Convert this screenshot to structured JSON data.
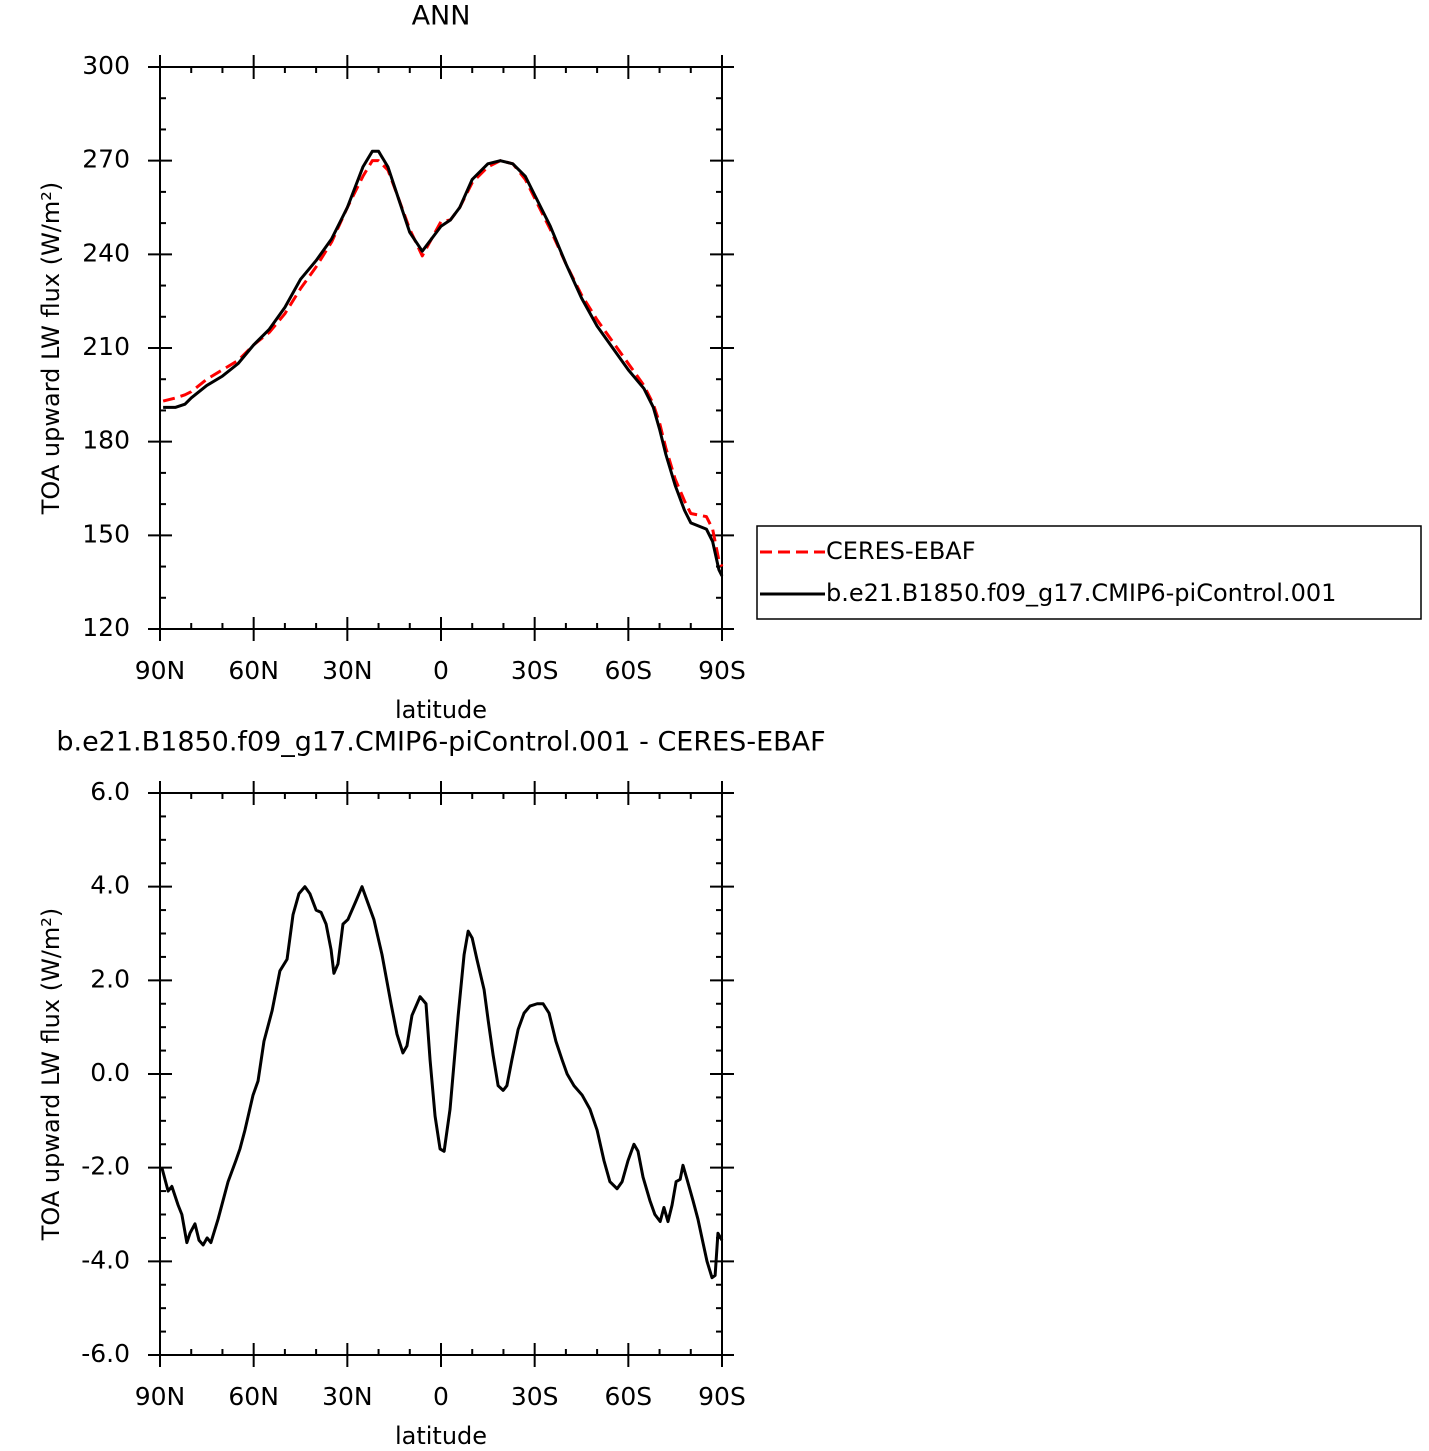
{
  "chart_data": [
    {
      "type": "line",
      "title": "ANN",
      "xlabel": "latitude",
      "ylabel": "TOA upward LW flux (W/m²)",
      "xlim": [
        90,
        -90
      ],
      "xticks": [
        {
          "value": 90,
          "label": "90N"
        },
        {
          "value": 60,
          "label": "60N"
        },
        {
          "value": 30,
          "label": "30N"
        },
        0,
        {
          "value": -30,
          "label": "30S"
        },
        {
          "value": -60,
          "label": "60S"
        },
        {
          "value": -90,
          "label": "90S"
        }
      ],
      "ylim": [
        120,
        300
      ],
      "yticks": [
        120,
        150,
        180,
        210,
        240,
        270,
        300
      ],
      "legend": "right",
      "x": [
        89,
        85,
        82,
        80,
        75,
        70,
        65,
        60,
        55,
        50,
        45,
        40,
        35,
        30,
        25,
        22,
        20,
        17,
        14,
        10,
        6,
        3,
        0,
        -3,
        -6,
        -10,
        -15,
        -19,
        -23,
        -27,
        -30,
        -35,
        -40,
        -45,
        -50,
        -55,
        -60,
        -65,
        -68,
        -70,
        -72,
        -75,
        -78,
        -80,
        -85,
        -87,
        -89,
        -90
      ],
      "series": [
        {
          "name": "CERES-EBAF",
          "color": "#ff0000",
          "dash": true,
          "values": [
            193,
            194,
            195,
            196,
            200,
            203,
            206,
            211,
            215,
            221,
            229,
            236,
            244,
            255,
            265,
            270,
            270,
            267,
            259,
            248,
            239.5,
            245,
            250.5,
            251,
            255,
            263,
            268,
            270,
            269,
            264,
            258,
            248,
            237,
            227,
            219,
            212,
            205,
            198,
            192,
            186,
            178,
            168,
            161,
            157,
            156,
            152,
            142,
            140
          ]
        },
        {
          "name": "b.e21.B1850.f09_g17.CMIP6-piControl.001",
          "color": "#000000",
          "dash": false,
          "values": [
            191,
            191,
            192,
            194,
            198,
            201,
            205,
            211,
            216,
            223,
            232,
            238,
            245,
            255,
            268,
            273,
            273,
            268,
            259,
            247,
            241,
            245,
            249,
            251,
            255,
            264,
            269,
            270,
            269,
            265,
            259,
            249,
            237,
            226,
            217,
            210,
            203,
            197,
            191,
            184,
            176,
            166,
            158,
            154,
            152,
            148,
            139,
            137
          ]
        }
      ]
    },
    {
      "type": "line",
      "title": "b.e21.B1850.f09_g17.CMIP6-piControl.001 - CERES-EBAF",
      "xlabel": "latitude",
      "ylabel": "TOA upward LW flux (W/m²)",
      "xlim": [
        90,
        -90
      ],
      "xticks": [
        {
          "value": 90,
          "label": "90N"
        },
        {
          "value": 60,
          "label": "60N"
        },
        {
          "value": 30,
          "label": "30N"
        },
        0,
        {
          "value": -30,
          "label": "30S"
        },
        {
          "value": -60,
          "label": "60S"
        },
        {
          "value": -90,
          "label": "90S"
        }
      ],
      "ylim": [
        -6,
        6
      ],
      "yticks": [
        {
          "value": -6,
          "label": "-6.0"
        },
        {
          "value": -4,
          "label": "-4.0"
        },
        {
          "value": -2,
          "label": "-2.0"
        },
        {
          "value": 0,
          "label": "0.0"
        },
        {
          "value": 2,
          "label": "2.0"
        },
        {
          "value": 4,
          "label": "4.0"
        },
        {
          "value": 6,
          "label": "6.0"
        }
      ],
      "color": "#000000",
      "x": [
        89.4,
        87.4,
        86.2,
        84.2,
        83,
        81.4,
        80.4,
        78.8,
        77.5,
        76.2,
        74.9,
        73.7,
        71.4,
        68.2,
        65.7,
        64.4,
        62.8,
        60.2,
        58.6,
        56.7,
        54.1,
        51.6,
        49.3,
        47.4,
        45.5,
        43.6,
        42,
        40,
        38.4,
        36.8,
        35.2,
        34.3,
        33,
        31.4,
        29.8,
        27.2,
        25.3,
        23.4,
        21.5,
        18.9,
        16,
        14.1,
        12.2,
        10.9,
        9.3,
        6.7,
        4.8,
        3.5,
        1.9,
        0.3,
        -1,
        -2.9,
        -5.5,
        -7.4,
        -8.7,
        -10,
        -11.5,
        -13.8,
        -15.1,
        -16.7,
        -18.3,
        -19.9,
        -21.1,
        -22.7,
        -24.7,
        -26.6,
        -28.5,
        -30.8,
        -32.7,
        -34.6,
        -36.8,
        -38.8,
        -40.4,
        -42.6,
        -45.2,
        -47.7,
        -50,
        -52.2,
        -54.1,
        -56.4,
        -58,
        -59.9,
        -61.8,
        -63.1,
        -64.7,
        -66.9,
        -68.5,
        -70.2,
        -71.4,
        -72.7,
        -74,
        -75.3,
        -76.6,
        -77.5,
        -78.8,
        -80.7,
        -82.3,
        -83.9,
        -85.2,
        -86.8,
        -87.8,
        -88.7,
        -90
      ],
      "values": [
        -2.0,
        -2.5,
        -2.4,
        -2.8,
        -3.0,
        -3.6,
        -3.4,
        -3.2,
        -3.55,
        -3.65,
        -3.5,
        -3.6,
        -3.1,
        -2.3,
        -1.85,
        -1.6,
        -1.2,
        -0.45,
        -0.15,
        0.7,
        1.35,
        2.2,
        2.45,
        3.4,
        3.85,
        4.0,
        3.85,
        3.5,
        3.45,
        3.2,
        2.65,
        2.15,
        2.35,
        3.2,
        3.3,
        3.7,
        4.0,
        3.65,
        3.3,
        2.55,
        1.5,
        0.85,
        0.45,
        0.6,
        1.25,
        1.65,
        1.5,
        0.3,
        -0.9,
        -1.6,
        -1.65,
        -0.75,
        1.25,
        2.55,
        3.05,
        2.9,
        2.45,
        1.8,
        1.15,
        0.4,
        -0.25,
        -0.35,
        -0.25,
        0.3,
        0.95,
        1.3,
        1.45,
        1.5,
        1.5,
        1.3,
        0.7,
        0.3,
        0.0,
        -0.25,
        -0.45,
        -0.75,
        -1.2,
        -1.85,
        -2.3,
        -2.45,
        -2.3,
        -1.85,
        -1.5,
        -1.65,
        -2.2,
        -2.7,
        -3.0,
        -3.15,
        -2.85,
        -3.15,
        -2.8,
        -2.3,
        -2.25,
        -1.95,
        -2.25,
        -2.7,
        -3.1,
        -3.6,
        -4.0,
        -4.35,
        -4.3,
        -3.4,
        -3.55
      ]
    }
  ]
}
